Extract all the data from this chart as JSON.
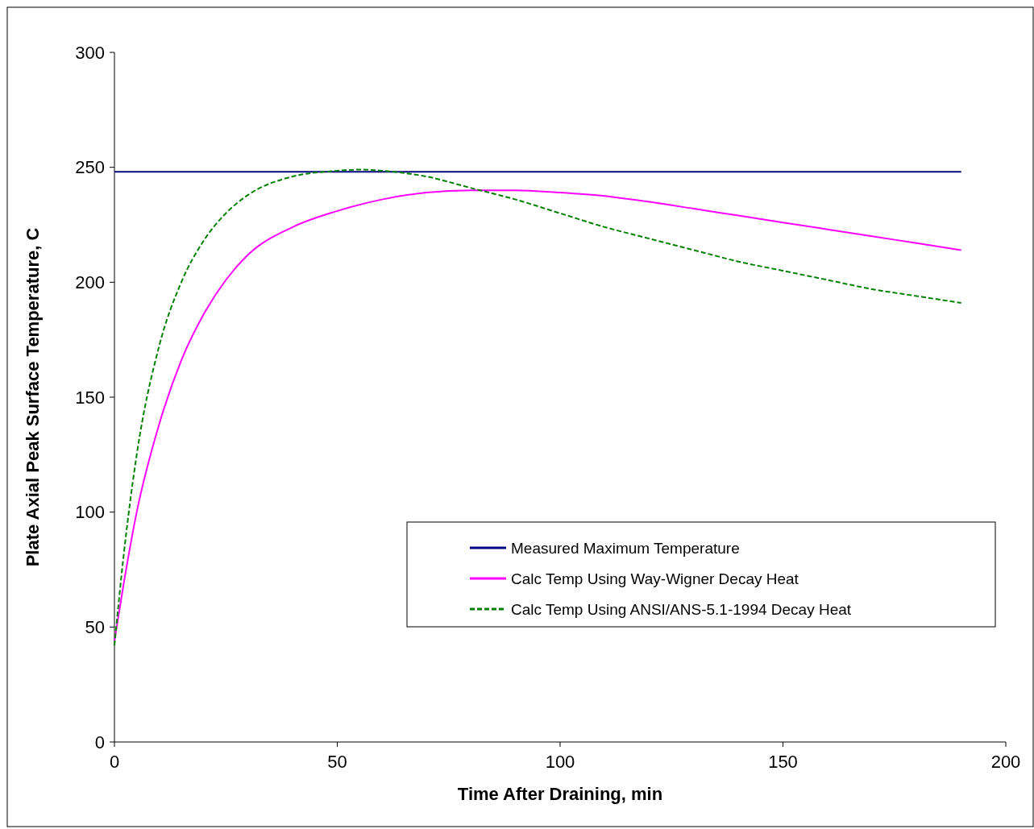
{
  "chart_data": {
    "type": "line",
    "xlabel": "Time After Draining, min",
    "ylabel": "Plate Axial Peak Surface Temperature, C",
    "xlim": [
      0,
      200
    ],
    "xticks": [
      0,
      50,
      100,
      150,
      200
    ],
    "ylim": [
      0,
      300
    ],
    "yticks": [
      0,
      50,
      100,
      150,
      200,
      250,
      300
    ],
    "grid": false,
    "legend": "bottom right",
    "marker": "none",
    "series": [
      {
        "name": "Measured Maximum Temperature",
        "color": "#000080",
        "line_style": "solid",
        "x": [
          0,
          190
        ],
        "values": [
          248,
          248
        ]
      },
      {
        "name": "Calc Temp Using Way-Wigner Decay Heat",
        "color": "#ff00ff",
        "line_style": "solid",
        "x": [
          0,
          2,
          5,
          10,
          15,
          20,
          25,
          30,
          40,
          50,
          60,
          70,
          80,
          90,
          100,
          110,
          120,
          130,
          140,
          150,
          160,
          170,
          180,
          190
        ],
        "values": [
          44,
          68,
          100,
          138,
          166,
          186,
          201,
          212,
          224,
          231,
          236,
          239,
          240,
          240,
          239,
          237.5,
          235,
          232,
          229,
          226,
          223,
          220,
          217,
          214
        ]
      },
      {
        "name": "Calc Temp Using ANSI/ANS-5.1-1994 Decay Heat",
        "color": "#008000",
        "line_style": "dashed",
        "x": [
          0,
          2,
          5,
          10,
          15,
          20,
          25,
          30,
          40,
          50,
          55,
          60,
          70,
          80,
          90,
          100,
          110,
          120,
          130,
          140,
          150,
          160,
          170,
          180,
          190
        ],
        "values": [
          42,
          80,
          125,
          172,
          200,
          218,
          230,
          238,
          246,
          248.5,
          249,
          248.5,
          246,
          241,
          236,
          230,
          224,
          219,
          214,
          209,
          205,
          201,
          197,
          194,
          191
        ]
      }
    ]
  }
}
